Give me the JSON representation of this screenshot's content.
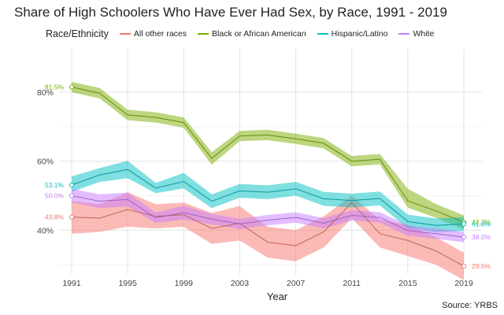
{
  "chart_data": {
    "type": "line",
    "title": "Share of High Schoolers Who Have Ever Had Sex, by Race, 1991 - 2019",
    "xlabel": "Year",
    "ylabel": "",
    "x": [
      1991,
      1993,
      1995,
      1997,
      1999,
      2001,
      2003,
      2005,
      2007,
      2009,
      2011,
      2013,
      2015,
      2017,
      2019
    ],
    "xticks": [
      "1991",
      "1995",
      "1999",
      "2003",
      "2007",
      "2011",
      "2015",
      "2019"
    ],
    "yticks": [
      "40%",
      "60%",
      "80%"
    ],
    "ylim": [
      25,
      86
    ],
    "legend_title": "Race/Ethnicity",
    "source": "Source: YRBS",
    "series": [
      {
        "name": "All other races",
        "color": "#F8766D",
        "values": [
          43.8,
          43.5,
          46.0,
          44.0,
          44.5,
          40.5,
          42.0,
          36.5,
          35.5,
          39.5,
          48.0,
          39.0,
          37.0,
          34.0,
          29.6
        ],
        "lower": [
          39.0,
          39.5,
          41.0,
          40.5,
          41.0,
          36.0,
          37.0,
          32.0,
          31.0,
          35.0,
          43.5,
          35.0,
          32.5,
          30.0,
          25.5
        ],
        "upper": [
          48.5,
          47.5,
          51.0,
          47.5,
          48.0,
          45.0,
          47.0,
          41.0,
          40.0,
          44.0,
          50.0,
          43.0,
          41.5,
          38.0,
          33.5
        ],
        "start_label": "43.8%",
        "end_label": "29.6%"
      },
      {
        "name": "Black or African American",
        "color": "#7CAE00",
        "values": [
          81.5,
          79.7,
          73.4,
          72.7,
          71.2,
          60.8,
          67.3,
          67.6,
          66.5,
          65.2,
          60.0,
          60.6,
          48.5,
          45.6,
          42.3
        ],
        "lower": [
          80.0,
          78.2,
          71.9,
          71.2,
          69.7,
          59.0,
          65.8,
          66.1,
          65.0,
          63.7,
          58.5,
          59.1,
          46.5,
          43.6,
          40.3
        ],
        "upper": [
          83.0,
          81.2,
          74.9,
          74.2,
          72.7,
          62.6,
          68.8,
          69.1,
          68.0,
          66.7,
          61.5,
          62.1,
          52.0,
          47.6,
          44.3
        ],
        "start_label": "81.5%",
        "end_label": "42.3%"
      },
      {
        "name": "Hispanic/Latino",
        "color": "#00BFC4",
        "values": [
          53.1,
          56.0,
          57.6,
          52.2,
          54.1,
          48.4,
          51.4,
          51.0,
          52.0,
          49.1,
          48.6,
          49.2,
          42.5,
          41.4,
          41.8
        ],
        "lower": [
          51.1,
          54.0,
          55.1,
          50.7,
          52.1,
          46.4,
          49.4,
          49.0,
          50.0,
          47.1,
          46.6,
          47.2,
          40.5,
          39.4,
          39.8
        ],
        "upper": [
          55.6,
          58.0,
          60.1,
          53.7,
          56.6,
          50.4,
          53.4,
          53.0,
          54.0,
          51.1,
          50.6,
          51.2,
          44.5,
          43.4,
          43.8
        ],
        "start_label": "53.1%",
        "end_label": "41.8%"
      },
      {
        "name": "White",
        "color": "#C77CFF",
        "values": [
          50.0,
          48.4,
          48.9,
          43.6,
          45.1,
          43.2,
          41.8,
          42.9,
          43.7,
          42.0,
          44.3,
          43.7,
          39.9,
          39.0,
          38.0
        ],
        "lower": [
          48.0,
          46.4,
          46.9,
          42.1,
          43.1,
          41.7,
          40.3,
          41.4,
          42.2,
          40.5,
          42.8,
          42.2,
          38.4,
          37.5,
          36.5
        ],
        "upper": [
          52.0,
          50.4,
          50.9,
          45.1,
          47.1,
          44.7,
          43.3,
          44.4,
          45.2,
          43.5,
          45.8,
          45.2,
          41.4,
          40.5,
          39.5
        ],
        "start_label": "50.0%",
        "end_label": "38.0%"
      }
    ]
  }
}
